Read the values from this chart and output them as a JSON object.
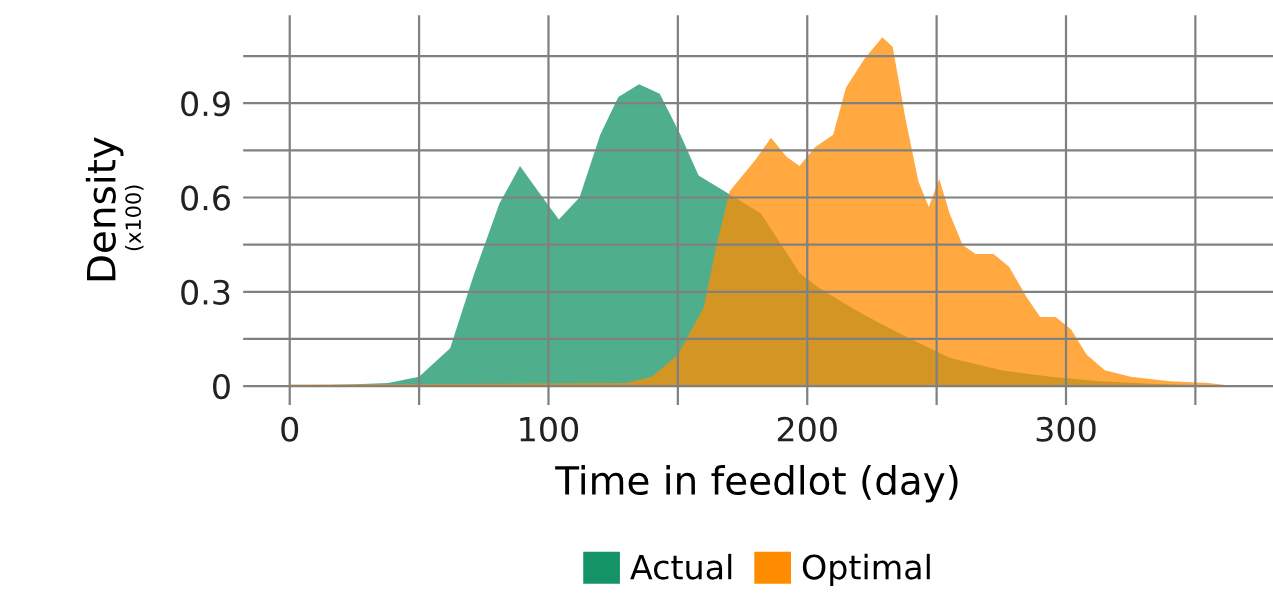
{
  "chart_data": {
    "type": "area",
    "xlabel": "Time in feedlot (day)",
    "ylabel": "Density",
    "annotations": [
      "(x100)"
    ],
    "xlim": [
      -18,
      380
    ],
    "ylim": [
      -0.06,
      1.18
    ],
    "xticks": [
      0,
      {
        "value": 50,
        "label": null
      },
      100,
      {
        "value": 150,
        "label": null
      },
      200,
      {
        "value": 250,
        "label": null
      },
      300,
      {
        "value": 350,
        "label": null
      }
    ],
    "yticks": [
      0,
      {
        "value": 0.15,
        "label": null
      },
      0.3,
      {
        "value": 0.45,
        "label": null
      },
      0.6,
      {
        "value": 0.75,
        "label": null
      },
      0.9,
      {
        "value": 1.05,
        "label": null
      }
    ],
    "grid": true,
    "legend": "bottom",
    "series": [
      {
        "name": "Actual",
        "color": "#149466",
        "x": [
          0,
          23,
          38,
          50,
          62,
          71,
          81,
          89,
          96,
          104,
          112,
          120,
          127,
          135,
          143,
          151,
          158,
          166,
          174,
          182,
          190,
          197,
          205,
          217,
          228,
          240,
          255,
          275,
          294,
          313,
          333,
          364
        ],
        "values": [
          0.0,
          0.005,
          0.01,
          0.03,
          0.12,
          0.35,
          0.58,
          0.7,
          0.62,
          0.53,
          0.6,
          0.8,
          0.92,
          0.96,
          0.93,
          0.8,
          0.67,
          0.63,
          0.59,
          0.55,
          0.45,
          0.36,
          0.31,
          0.25,
          0.2,
          0.15,
          0.09,
          0.05,
          0.03,
          0.015,
          0.007,
          0.0
        ]
      },
      {
        "name": "Optimal",
        "color": "#ff8c00",
        "x": [
          0,
          100,
          130,
          140,
          150,
          160,
          165,
          170,
          175,
          180,
          186,
          192,
          197,
          203,
          210,
          215,
          222,
          229,
          233,
          238,
          243,
          247,
          251,
          255,
          260,
          265,
          272,
          278,
          285,
          290,
          296,
          302,
          308,
          315,
          325,
          340,
          355,
          365
        ],
        "values": [
          0.005,
          0.008,
          0.01,
          0.03,
          0.1,
          0.25,
          0.45,
          0.62,
          0.67,
          0.72,
          0.79,
          0.73,
          0.7,
          0.76,
          0.8,
          0.95,
          1.04,
          1.11,
          1.08,
          0.85,
          0.65,
          0.57,
          0.66,
          0.55,
          0.45,
          0.42,
          0.42,
          0.38,
          0.28,
          0.22,
          0.22,
          0.18,
          0.1,
          0.05,
          0.03,
          0.015,
          0.01,
          0.0
        ]
      }
    ]
  }
}
